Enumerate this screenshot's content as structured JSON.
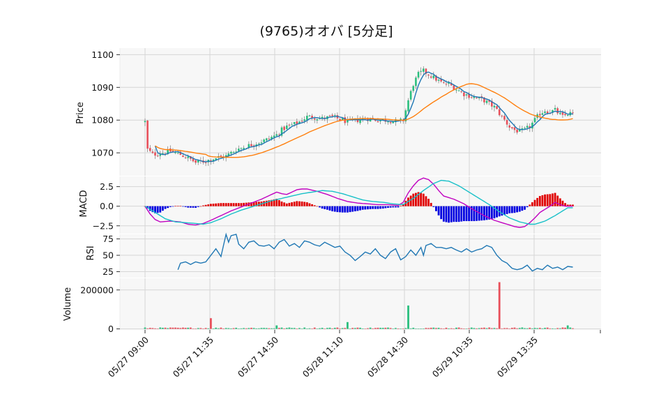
{
  "chart_data": {
    "type": "candlestick",
    "title": "(9765)オオバ [5分足]",
    "colors": {
      "up": "#2bbf7e",
      "down": "#e8505b",
      "sma_short": "#1f77b4",
      "sma_long": "#ff7f0e",
      "macd_line": "#c000c0",
      "signal_line": "#17c0c8",
      "hist_pos": "#e00000",
      "hist_neg": "#0000e0",
      "rsi": "#1f77b4",
      "panel_bg": "#f7f7f7",
      "grid": "#d6d6d6"
    },
    "x_tick_labels": [
      "05/27 09:00",
      "05/27 11:35",
      "05/27 14:50",
      "05/28 11:10",
      "05/28 14:30",
      "05/29 10:35",
      "05/29 13:35"
    ],
    "bar_count": 170,
    "panels": {
      "price": {
        "ylabel": "Price",
        "ylim": [
          1063,
          1102
        ],
        "yticks": [
          1070,
          1080,
          1090,
          1100
        ]
      },
      "macd": {
        "ylabel": "MACD",
        "ylim": [
          -3.5,
          3.8
        ],
        "yticks": [
          2.5,
          0.0,
          -2.5
        ],
        "ytick_labels": [
          "2.5",
          "0.0",
          "−2.5"
        ]
      },
      "rsi": {
        "ylabel": "RSI",
        "ylim": [
          16,
          82
        ],
        "yticks": [
          75,
          50,
          25
        ],
        "ytick_labels": [
          "75",
          "50",
          "25"
        ]
      },
      "volume": {
        "ylabel": "Volume",
        "ylim": [
          -5000,
          260000
        ],
        "yticks": [
          200000,
          0
        ],
        "ytick_labels": [
          "200000",
          "0"
        ]
      }
    },
    "price_path": [
      [
        0,
        1079.5
      ],
      [
        1,
        1071
      ],
      [
        3,
        1069.5
      ],
      [
        7,
        1070
      ],
      [
        10,
        1070.5
      ],
      [
        14,
        1069.5
      ],
      [
        18,
        1068
      ],
      [
        20,
        1067
      ],
      [
        24,
        1067.5
      ],
      [
        28,
        1068.5
      ],
      [
        32,
        1069
      ],
      [
        36,
        1071
      ],
      [
        40,
        1072
      ],
      [
        44,
        1073
      ],
      [
        48,
        1074
      ],
      [
        52,
        1075.5
      ],
      [
        54,
        1077
      ],
      [
        56,
        1078
      ],
      [
        58,
        1078.5
      ],
      [
        60,
        1079
      ],
      [
        62,
        1080
      ],
      [
        64,
        1081
      ],
      [
        66,
        1081
      ],
      [
        70,
        1080.5
      ],
      [
        74,
        1081
      ],
      [
        78,
        1080
      ],
      [
        80,
        1079.5
      ],
      [
        84,
        1080
      ],
      [
        88,
        1080.5
      ],
      [
        92,
        1080
      ],
      [
        96,
        1080
      ],
      [
        100,
        1079.5
      ],
      [
        102,
        1080
      ],
      [
        104,
        1086
      ],
      [
        106,
        1091
      ],
      [
        108,
        1094
      ],
      [
        110,
        1095
      ],
      [
        112,
        1094
      ],
      [
        114,
        1093
      ],
      [
        116,
        1092
      ],
      [
        118,
        1091
      ],
      [
        120,
        1091
      ],
      [
        122,
        1090
      ],
      [
        124,
        1089
      ],
      [
        126,
        1088
      ],
      [
        130,
        1087
      ],
      [
        134,
        1086
      ],
      [
        138,
        1084
      ],
      [
        140,
        1082
      ],
      [
        142,
        1080
      ],
      [
        144,
        1078
      ],
      [
        146,
        1077
      ],
      [
        148,
        1076.5
      ],
      [
        150,
        1077
      ],
      [
        152,
        1078
      ],
      [
        154,
        1080
      ],
      [
        156,
        1082
      ],
      [
        158,
        1083
      ],
      [
        160,
        1082.5
      ],
      [
        162,
        1083
      ],
      [
        165,
        1081
      ],
      [
        167,
        1082
      ]
    ],
    "macd_path": [
      [
        0,
        0.0
      ],
      [
        2,
        -1.0
      ],
      [
        4,
        -1.7
      ],
      [
        6,
        -2.0
      ],
      [
        10,
        -1.9
      ],
      [
        14,
        -2.0
      ],
      [
        17,
        -2.3
      ],
      [
        20,
        -2.4
      ],
      [
        23,
        -2.2
      ],
      [
        26,
        -1.8
      ],
      [
        30,
        -1.2
      ],
      [
        34,
        -0.6
      ],
      [
        38,
        -0.1
      ],
      [
        42,
        0.4
      ],
      [
        46,
        0.9
      ],
      [
        50,
        1.5
      ],
      [
        52,
        1.8
      ],
      [
        54,
        1.6
      ],
      [
        56,
        1.5
      ],
      [
        58,
        1.8
      ],
      [
        60,
        2.1
      ],
      [
        62,
        2.2
      ],
      [
        64,
        2.2
      ],
      [
        68,
        1.9
      ],
      [
        72,
        1.5
      ],
      [
        76,
        1.0
      ],
      [
        80,
        0.6
      ],
      [
        84,
        0.4
      ],
      [
        88,
        0.3
      ],
      [
        92,
        0.2
      ],
      [
        96,
        0.2
      ],
      [
        100,
        0.1
      ],
      [
        102,
        0.5
      ],
      [
        104,
        1.7
      ],
      [
        106,
        2.6
      ],
      [
        108,
        3.3
      ],
      [
        110,
        3.6
      ],
      [
        112,
        3.4
      ],
      [
        114,
        2.8
      ],
      [
        116,
        2.0
      ],
      [
        118,
        1.3
      ],
      [
        122,
        0.9
      ],
      [
        126,
        0.3
      ],
      [
        130,
        -0.5
      ],
      [
        134,
        -1.2
      ],
      [
        138,
        -1.8
      ],
      [
        142,
        -2.2
      ],
      [
        146,
        -2.6
      ],
      [
        148,
        -2.7
      ],
      [
        150,
        -2.6
      ],
      [
        152,
        -2.1
      ],
      [
        154,
        -1.5
      ],
      [
        156,
        -0.8
      ],
      [
        158,
        -0.4
      ],
      [
        160,
        0.0
      ],
      [
        162,
        0.5
      ],
      [
        164,
        0.2
      ],
      [
        166,
        0.0
      ],
      [
        167,
        0.0
      ]
    ],
    "signal_path": [
      [
        0,
        0.0
      ],
      [
        4,
        -0.8
      ],
      [
        8,
        -1.6
      ],
      [
        12,
        -2.0
      ],
      [
        16,
        -2.1
      ],
      [
        20,
        -2.2
      ],
      [
        23,
        -2.3
      ],
      [
        26,
        -2.1
      ],
      [
        30,
        -1.6
      ],
      [
        34,
        -1.0
      ],
      [
        38,
        -0.5
      ],
      [
        42,
        -0.1
      ],
      [
        46,
        0.3
      ],
      [
        50,
        0.7
      ],
      [
        54,
        1.0
      ],
      [
        58,
        1.3
      ],
      [
        62,
        1.6
      ],
      [
        66,
        1.8
      ],
      [
        70,
        2.0
      ],
      [
        74,
        1.9
      ],
      [
        78,
        1.6
      ],
      [
        82,
        1.2
      ],
      [
        86,
        0.8
      ],
      [
        90,
        0.6
      ],
      [
        94,
        0.5
      ],
      [
        98,
        0.3
      ],
      [
        102,
        0.2
      ],
      [
        106,
        1.0
      ],
      [
        110,
        2.0
      ],
      [
        114,
        2.9
      ],
      [
        117,
        3.3
      ],
      [
        120,
        3.2
      ],
      [
        124,
        2.6
      ],
      [
        128,
        1.8
      ],
      [
        132,
        1.0
      ],
      [
        136,
        0.2
      ],
      [
        140,
        -0.7
      ],
      [
        144,
        -1.5
      ],
      [
        148,
        -2.0
      ],
      [
        152,
        -2.3
      ],
      [
        154,
        -2.3
      ],
      [
        158,
        -1.9
      ],
      [
        162,
        -1.2
      ],
      [
        166,
        -0.4
      ],
      [
        167,
        -0.2
      ]
    ],
    "rsi_start_index": 13,
    "rsi_path": [
      [
        13,
        28
      ],
      [
        14,
        38
      ],
      [
        16,
        40
      ],
      [
        18,
        36
      ],
      [
        20,
        40
      ],
      [
        22,
        38
      ],
      [
        24,
        40
      ],
      [
        26,
        50
      ],
      [
        28,
        60
      ],
      [
        30,
        48
      ],
      [
        31,
        65
      ],
      [
        32,
        85
      ],
      [
        33,
        70
      ],
      [
        34,
        80
      ],
      [
        36,
        82
      ],
      [
        37,
        67
      ],
      [
        39,
        60
      ],
      [
        41,
        70
      ],
      [
        43,
        72
      ],
      [
        45,
        65
      ],
      [
        47,
        64
      ],
      [
        49,
        66
      ],
      [
        51,
        60
      ],
      [
        53,
        70
      ],
      [
        55,
        74
      ],
      [
        57,
        64
      ],
      [
        59,
        68
      ],
      [
        61,
        62
      ],
      [
        63,
        72
      ],
      [
        65,
        70
      ],
      [
        67,
        66
      ],
      [
        69,
        64
      ],
      [
        71,
        70
      ],
      [
        73,
        66
      ],
      [
        75,
        62
      ],
      [
        77,
        64
      ],
      [
        79,
        55
      ],
      [
        81,
        50
      ],
      [
        83,
        42
      ],
      [
        85,
        48
      ],
      [
        87,
        55
      ],
      [
        89,
        52
      ],
      [
        91,
        60
      ],
      [
        93,
        50
      ],
      [
        95,
        45
      ],
      [
        97,
        55
      ],
      [
        99,
        60
      ],
      [
        101,
        43
      ],
      [
        103,
        48
      ],
      [
        105,
        58
      ],
      [
        107,
        50
      ],
      [
        109,
        62
      ],
      [
        110,
        50
      ],
      [
        111,
        65
      ],
      [
        113,
        68
      ],
      [
        115,
        62
      ],
      [
        117,
        62
      ],
      [
        119,
        60
      ],
      [
        121,
        62
      ],
      [
        123,
        58
      ],
      [
        125,
        55
      ],
      [
        127,
        60
      ],
      [
        129,
        55
      ],
      [
        131,
        58
      ],
      [
        133,
        60
      ],
      [
        135,
        65
      ],
      [
        137,
        62
      ],
      [
        139,
        50
      ],
      [
        141,
        42
      ],
      [
        143,
        38
      ],
      [
        145,
        30
      ],
      [
        147,
        28
      ],
      [
        149,
        30
      ],
      [
        151,
        35
      ],
      [
        153,
        26
      ],
      [
        155,
        30
      ],
      [
        157,
        28
      ],
      [
        159,
        35
      ],
      [
        161,
        30
      ],
      [
        163,
        32
      ],
      [
        165,
        28
      ],
      [
        167,
        33
      ],
      [
        169,
        32
      ]
    ]
  }
}
